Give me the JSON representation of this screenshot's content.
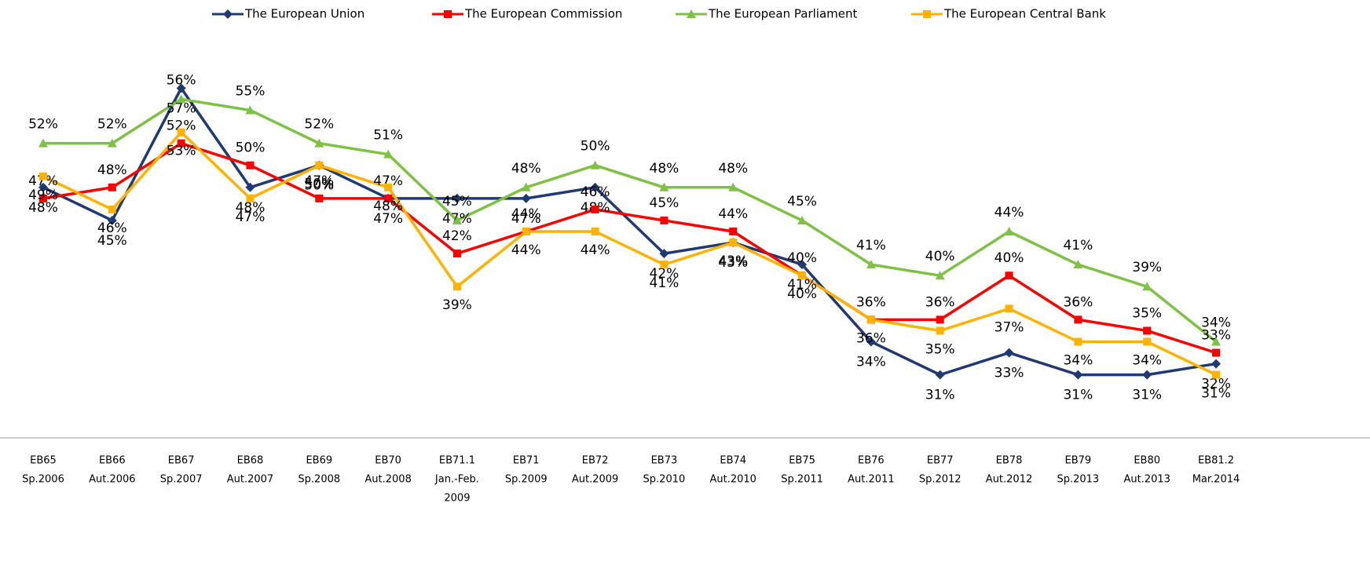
{
  "chart_data": {
    "type": "line",
    "categories": [
      [
        "EB65",
        "Sp.2006"
      ],
      [
        "EB66",
        "Aut.2006"
      ],
      [
        "EB67",
        "Sp.2007"
      ],
      [
        "EB68",
        "Aut.2007"
      ],
      [
        "EB69",
        "Sp.2008"
      ],
      [
        "EB70",
        "Aut.2008"
      ],
      [
        "EB71.1",
        "Jan.-Feb.",
        "2009"
      ],
      [
        "EB71",
        "Sp.2009"
      ],
      [
        "EB72",
        "Aut.2009"
      ],
      [
        "EB73",
        "Sp.2010"
      ],
      [
        "EB74",
        "Aut.2010"
      ],
      [
        "EB75",
        "Sp.2011"
      ],
      [
        "EB76",
        "Aut.2011"
      ],
      [
        "EB77",
        "Sp.2012"
      ],
      [
        "EB78",
        "Aut.2012"
      ],
      [
        "EB79",
        "Sp.2013"
      ],
      [
        "EB80",
        "Aut.2013"
      ],
      [
        "EB81.2",
        "Mar.2014"
      ]
    ],
    "ylim": [
      23,
      65
    ],
    "series": [
      {
        "name": "The European Union",
        "color": "#1f3a73",
        "marker": "diamond",
        "values": [
          48,
          45,
          57,
          48,
          50,
          47,
          47,
          47,
          48,
          42,
          43,
          41,
          34,
          31,
          33,
          31,
          31,
          32
        ],
        "value_labels": [
          "48%",
          "45%",
          "57%",
          "48%",
          "50%",
          "47%",
          "47%",
          "47%",
          "48%",
          "42%",
          "43%",
          "41%",
          "34%",
          "31%",
          "33%",
          "31%",
          "31%",
          "32%"
        ]
      },
      {
        "name": "The European Commission",
        "color": "#ff0000",
        "marker": "square",
        "values": [
          47,
          48,
          52,
          50,
          47,
          47,
          42,
          44,
          46,
          45,
          44,
          40,
          36,
          36,
          40,
          36,
          35,
          33
        ],
        "value_labels": [
          "47%",
          "48%",
          "52%",
          "50%",
          "47%",
          "47%",
          "42%",
          "44%",
          "46%",
          "45%",
          "44%",
          "40%",
          "36%",
          "36%",
          "40%",
          "36%",
          "35%",
          "33%"
        ]
      },
      {
        "name": "The European Parliament",
        "color": "#7dc242",
        "marker": "triangle",
        "values": [
          52,
          52,
          56,
          55,
          52,
          51,
          45,
          48,
          50,
          48,
          48,
          45,
          41,
          40,
          44,
          41,
          39,
          34
        ],
        "value_labels": [
          "52%",
          "52%",
          "56%",
          "55%",
          "52%",
          "51%",
          "45%",
          "48%",
          "50%",
          "48%",
          "48%",
          "45%",
          "41%",
          "40%",
          "44%",
          "41%",
          "39%",
          "34%"
        ]
      },
      {
        "name": "The European Central Bank",
        "color": "#ffb300",
        "marker": "square",
        "values": [
          49,
          46,
          53,
          47,
          50,
          48,
          39,
          44,
          44,
          41,
          43,
          40,
          36,
          35,
          37,
          34,
          34,
          31
        ],
        "value_labels": [
          "49%",
          "46%",
          "53%",
          "47%",
          "50%",
          "48%",
          "39%",
          "44%",
          "44%",
          "41%",
          "43%",
          "40%",
          "36%",
          "35%",
          "37%",
          "34%",
          "34%",
          "31%"
        ]
      }
    ]
  }
}
